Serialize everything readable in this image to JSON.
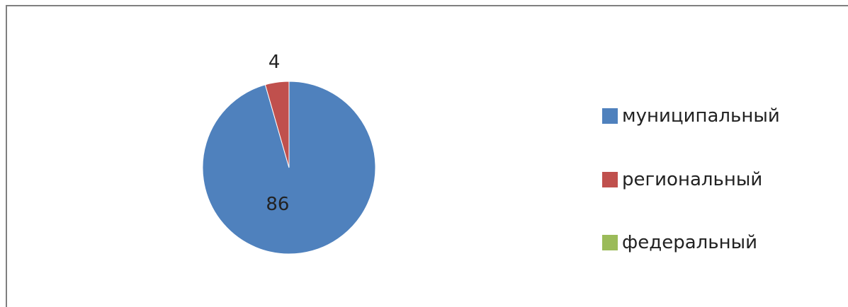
{
  "chart_data": {
    "type": "pie",
    "title": "",
    "categories": [
      "муниципальный",
      "региональный",
      "федеральный"
    ],
    "values": [
      86,
      4,
      0
    ],
    "data_labels": [
      "86",
      "4",
      ""
    ],
    "colors": [
      "#4f81bd",
      "#c0504d",
      "#9bbb59"
    ],
    "legend_position": "right",
    "start_angle_deg": 0,
    "direction": "clockwise"
  },
  "header": {
    "partial_title": ""
  }
}
